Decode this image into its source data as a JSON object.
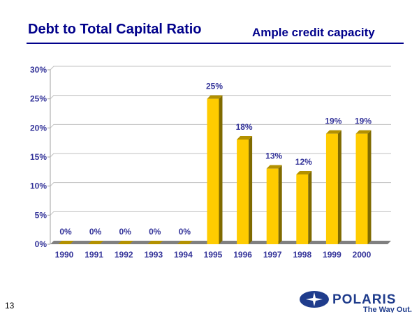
{
  "slide": {
    "title": "Debt to Total Capital Ratio",
    "subtitle": "Ample credit capacity",
    "page_number": "13"
  },
  "logo": {
    "brand": "POLARIS",
    "tagline": "The Way Out."
  },
  "colors": {
    "bar": "#ffcc00",
    "bar_side": "#7f6a00",
    "bar_top": "#b39100",
    "text": "#333399",
    "title": "#00008b",
    "grid": "#c0c0c0",
    "floor": "#808080"
  },
  "chart_data": {
    "type": "bar",
    "title": "Debt to Total Capital Ratio",
    "xlabel": "",
    "ylabel": "",
    "categories": [
      "1990",
      "1991",
      "1992",
      "1993",
      "1994",
      "1995",
      "1996",
      "1997",
      "1998",
      "1999",
      "2000"
    ],
    "values": [
      0,
      0,
      0,
      0,
      0,
      25,
      18,
      13,
      12,
      19,
      19
    ],
    "data_labels": [
      "0%",
      "0%",
      "0%",
      "0%",
      "0%",
      "25%",
      "18%",
      "13%",
      "12%",
      "19%",
      "19%"
    ],
    "ylim": [
      0,
      30
    ],
    "yticks": [
      0,
      5,
      10,
      15,
      20,
      25,
      30
    ],
    "ytick_labels": [
      "0%",
      "5%",
      "10%",
      "15%",
      "20%",
      "25%",
      "30%"
    ],
    "grid": true,
    "legend": "none"
  }
}
